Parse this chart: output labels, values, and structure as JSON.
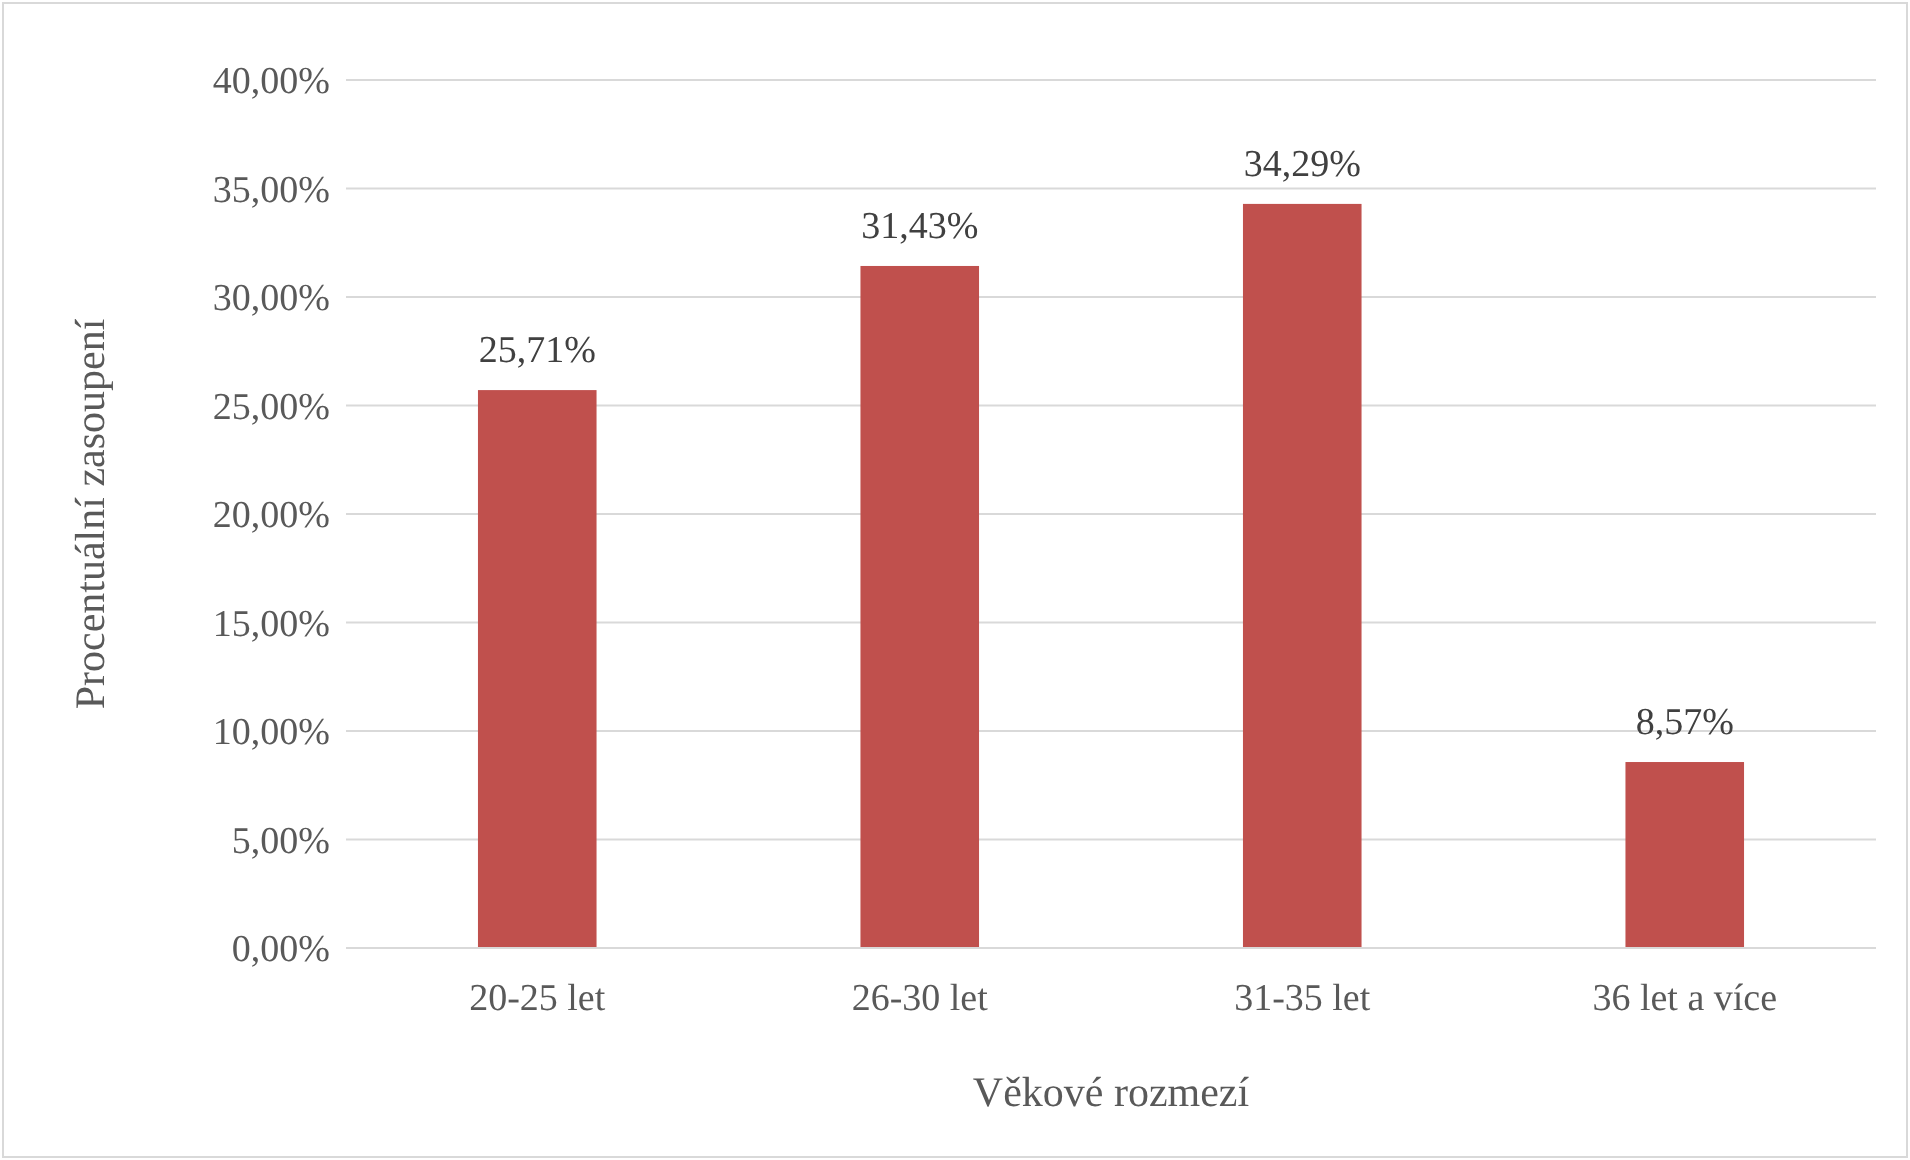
{
  "chart_data": {
    "type": "bar",
    "xlabel": "Věkové rozmezí",
    "ylabel": "Procentuální zasoupení",
    "categories": [
      "20-25 let",
      "26-30 let",
      "31-35 let",
      "36 let a více"
    ],
    "values": [
      25.71,
      31.43,
      34.29,
      8.57
    ],
    "value_labels": [
      "25,71%",
      "31,43%",
      "34,29%",
      "8,57%"
    ],
    "color": "#c0504d",
    "ylim": [
      0,
      40
    ],
    "yticks": [
      {
        "value": 0,
        "label": "0,00%"
      },
      {
        "value": 5,
        "label": "5,00%"
      },
      {
        "value": 10,
        "label": "10,00%"
      },
      {
        "value": 15,
        "label": "15,00%"
      },
      {
        "value": 20,
        "label": "20,00%"
      },
      {
        "value": 25,
        "label": "25,00%"
      },
      {
        "value": 30,
        "label": "30,00%"
      },
      {
        "value": 35,
        "label": "35,00%"
      },
      {
        "value": 40,
        "label": "40,00%"
      }
    ],
    "grid": "y"
  }
}
